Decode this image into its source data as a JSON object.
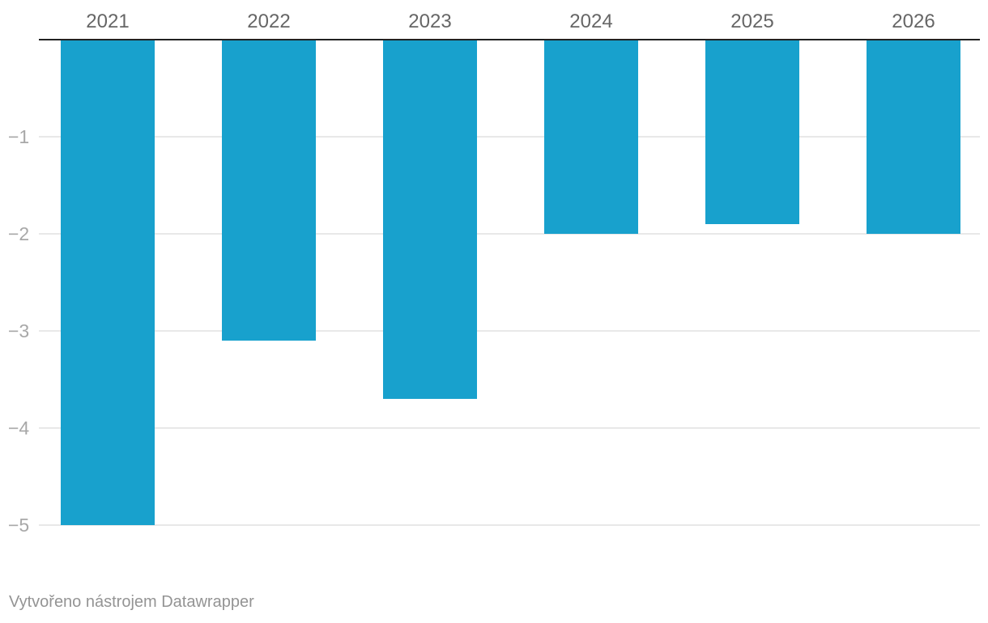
{
  "chart_data": {
    "type": "bar",
    "categories": [
      "2021",
      "2022",
      "2023",
      "2024",
      "2025",
      "2026"
    ],
    "values": [
      -5,
      -3.1,
      -3.7,
      -2,
      -1.9,
      -2
    ],
    "y_ticks": [
      {
        "value": -1,
        "label": "−1"
      },
      {
        "value": -2,
        "label": "−2"
      },
      {
        "value": -3,
        "label": "−3"
      },
      {
        "value": -4,
        "label": "−4"
      },
      {
        "value": -5,
        "label": "−5"
      }
    ],
    "ylim": [
      -5,
      0
    ],
    "grid": true,
    "bar_color": "#18a1cd",
    "title": "",
    "xlabel": "",
    "ylabel": ""
  },
  "footer": {
    "credit": "Vytvořeno nástrojem Datawrapper"
  }
}
